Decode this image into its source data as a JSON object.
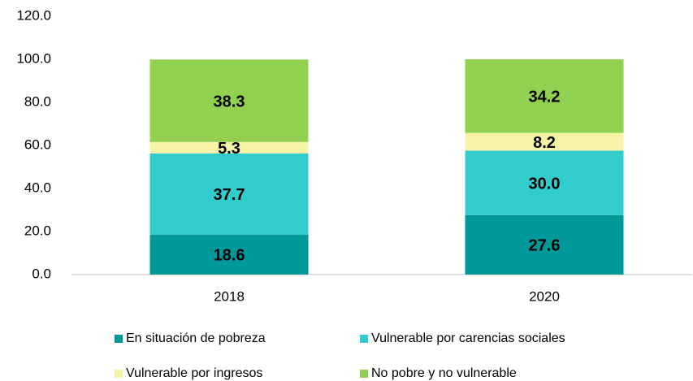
{
  "chart_data": {
    "type": "stacked_bar",
    "categories": [
      "2018",
      "2020"
    ],
    "series": [
      {
        "name": "En situación de pobreza",
        "color": "#009999",
        "values": [
          18.6,
          27.6
        ]
      },
      {
        "name": "Vulnerable por carencias sociales",
        "color": "#33cccc",
        "values": [
          37.7,
          30
        ],
        "value_labels": [
          "37.7",
          "30.0"
        ]
      },
      {
        "name": "Vulnerable por ingresos",
        "color": "#f6f2a6",
        "values": [
          5.3,
          8.2
        ]
      },
      {
        "name": "No pobre y no vulnerable",
        "color": "#92d050",
        "values": [
          38.3,
          34.2
        ]
      }
    ],
    "ylim": [
      0,
      120
    ],
    "yticks": [
      {
        "value": 0,
        "label": "0.0"
      },
      {
        "value": 20,
        "label": "20.0"
      },
      {
        "value": 40,
        "label": "40.0"
      },
      {
        "value": 60,
        "label": "60.0"
      },
      {
        "value": 80,
        "label": "80.0"
      },
      {
        "value": 100,
        "label": "100.0"
      },
      {
        "value": 120,
        "label": "120.0"
      }
    ],
    "grid": false
  }
}
